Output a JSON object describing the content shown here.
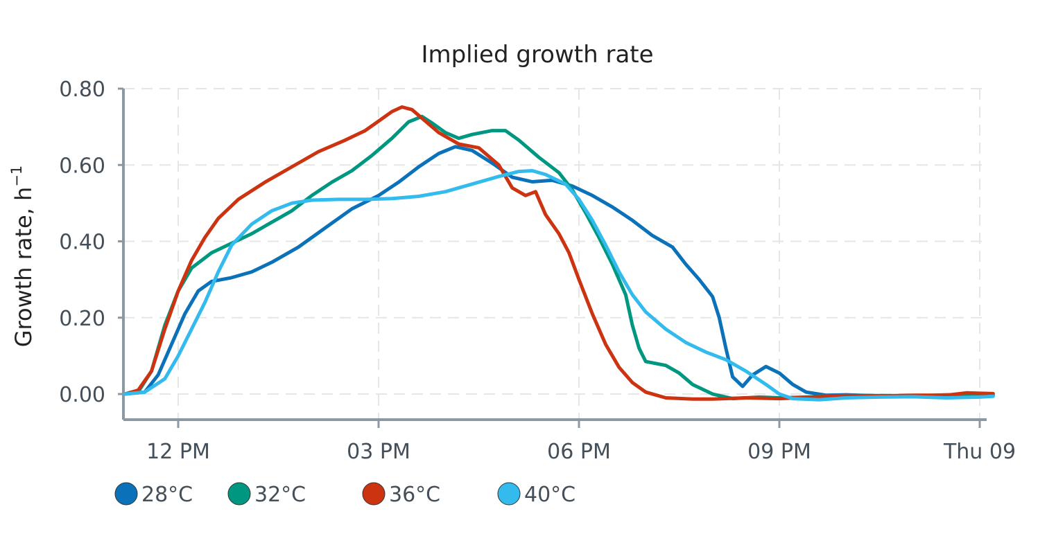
{
  "chart_data": {
    "type": "line",
    "title": "Implied growth rate",
    "ylabel": "Growth rate, h",
    "ylabel_sup": "−1",
    "ylim": [
      -0.07,
      0.8
    ],
    "xlim": [
      11.2,
      24.25
    ],
    "yticks": [
      {
        "value": 0.0,
        "label": "0.00"
      },
      {
        "value": 0.2,
        "label": "0.20"
      },
      {
        "value": 0.4,
        "label": "0.40"
      },
      {
        "value": 0.6,
        "label": "0.60"
      },
      {
        "value": 0.8,
        "label": "0.80"
      }
    ],
    "xticks": [
      {
        "value": 12,
        "label": "12 PM"
      },
      {
        "value": 15,
        "label": "03 PM"
      },
      {
        "value": 18,
        "label": "06 PM"
      },
      {
        "value": 21,
        "label": "09 PM"
      },
      {
        "value": 24,
        "label": "Thu 09"
      }
    ],
    "grid": true,
    "legend_position": "bottom-left",
    "series": [
      {
        "name": "28°C",
        "color": "#0b72b9",
        "points": [
          [
            11.2,
            0.0
          ],
          [
            11.5,
            0.005
          ],
          [
            11.7,
            0.05
          ],
          [
            11.9,
            0.13
          ],
          [
            12.1,
            0.21
          ],
          [
            12.3,
            0.27
          ],
          [
            12.5,
            0.295
          ],
          [
            12.8,
            0.305
          ],
          [
            13.1,
            0.32
          ],
          [
            13.4,
            0.345
          ],
          [
            13.8,
            0.385
          ],
          [
            14.2,
            0.435
          ],
          [
            14.6,
            0.485
          ],
          [
            15.0,
            0.52
          ],
          [
            15.3,
            0.555
          ],
          [
            15.6,
            0.595
          ],
          [
            15.9,
            0.63
          ],
          [
            16.15,
            0.648
          ],
          [
            16.4,
            0.638
          ],
          [
            16.7,
            0.605
          ],
          [
            17.0,
            0.568
          ],
          [
            17.3,
            0.556
          ],
          [
            17.6,
            0.56
          ],
          [
            17.9,
            0.545
          ],
          [
            18.2,
            0.52
          ],
          [
            18.5,
            0.49
          ],
          [
            18.8,
            0.455
          ],
          [
            19.1,
            0.415
          ],
          [
            19.4,
            0.385
          ],
          [
            19.6,
            0.34
          ],
          [
            19.8,
            0.3
          ],
          [
            20.0,
            0.255
          ],
          [
            20.1,
            0.2
          ],
          [
            20.2,
            0.12
          ],
          [
            20.3,
            0.045
          ],
          [
            20.45,
            0.02
          ],
          [
            20.6,
            0.05
          ],
          [
            20.8,
            0.072
          ],
          [
            21.0,
            0.055
          ],
          [
            21.2,
            0.025
          ],
          [
            21.4,
            0.005
          ],
          [
            21.7,
            -0.003
          ],
          [
            22.0,
            -0.002
          ],
          [
            22.5,
            -0.005
          ],
          [
            23.0,
            -0.005
          ],
          [
            23.5,
            -0.006
          ],
          [
            24.0,
            -0.004
          ],
          [
            24.2,
            -0.004
          ]
        ]
      },
      {
        "name": "32°C",
        "color": "#009781",
        "points": [
          [
            11.2,
            0.0
          ],
          [
            11.4,
            0.005
          ],
          [
            11.6,
            0.06
          ],
          [
            11.8,
            0.18
          ],
          [
            12.0,
            0.27
          ],
          [
            12.2,
            0.33
          ],
          [
            12.5,
            0.37
          ],
          [
            12.8,
            0.395
          ],
          [
            13.1,
            0.42
          ],
          [
            13.4,
            0.45
          ],
          [
            13.7,
            0.48
          ],
          [
            14.0,
            0.52
          ],
          [
            14.3,
            0.555
          ],
          [
            14.6,
            0.585
          ],
          [
            14.9,
            0.625
          ],
          [
            15.2,
            0.67
          ],
          [
            15.45,
            0.713
          ],
          [
            15.65,
            0.727
          ],
          [
            15.8,
            0.71
          ],
          [
            16.0,
            0.685
          ],
          [
            16.2,
            0.67
          ],
          [
            16.4,
            0.68
          ],
          [
            16.7,
            0.69
          ],
          [
            16.9,
            0.69
          ],
          [
            17.1,
            0.665
          ],
          [
            17.4,
            0.62
          ],
          [
            17.7,
            0.58
          ],
          [
            17.9,
            0.535
          ],
          [
            18.1,
            0.475
          ],
          [
            18.3,
            0.41
          ],
          [
            18.5,
            0.34
          ],
          [
            18.7,
            0.26
          ],
          [
            18.8,
            0.18
          ],
          [
            18.9,
            0.12
          ],
          [
            19.0,
            0.085
          ],
          [
            19.3,
            0.075
          ],
          [
            19.5,
            0.055
          ],
          [
            19.7,
            0.025
          ],
          [
            20.0,
            0.0
          ],
          [
            20.3,
            -0.012
          ],
          [
            20.7,
            -0.008
          ],
          [
            21.0,
            -0.01
          ],
          [
            21.4,
            -0.008
          ],
          [
            22.0,
            -0.004
          ],
          [
            22.5,
            -0.004
          ],
          [
            23.0,
            -0.005
          ],
          [
            23.5,
            -0.002
          ],
          [
            24.0,
            -0.002
          ],
          [
            24.2,
            -0.002
          ]
        ]
      },
      {
        "name": "36°C",
        "color": "#cc3311",
        "points": [
          [
            11.2,
            0.0
          ],
          [
            11.4,
            0.01
          ],
          [
            11.6,
            0.06
          ],
          [
            11.8,
            0.17
          ],
          [
            12.0,
            0.27
          ],
          [
            12.2,
            0.35
          ],
          [
            12.4,
            0.41
          ],
          [
            12.6,
            0.46
          ],
          [
            12.9,
            0.51
          ],
          [
            13.3,
            0.555
          ],
          [
            13.7,
            0.595
          ],
          [
            14.1,
            0.635
          ],
          [
            14.5,
            0.665
          ],
          [
            14.8,
            0.69
          ],
          [
            15.0,
            0.715
          ],
          [
            15.2,
            0.74
          ],
          [
            15.35,
            0.752
          ],
          [
            15.5,
            0.745
          ],
          [
            15.7,
            0.715
          ],
          [
            15.9,
            0.685
          ],
          [
            16.2,
            0.655
          ],
          [
            16.5,
            0.645
          ],
          [
            16.8,
            0.6
          ],
          [
            17.0,
            0.54
          ],
          [
            17.2,
            0.52
          ],
          [
            17.35,
            0.53
          ],
          [
            17.5,
            0.47
          ],
          [
            17.7,
            0.42
          ],
          [
            17.85,
            0.37
          ],
          [
            18.0,
            0.3
          ],
          [
            18.2,
            0.21
          ],
          [
            18.4,
            0.13
          ],
          [
            18.6,
            0.07
          ],
          [
            18.8,
            0.03
          ],
          [
            19.0,
            0.005
          ],
          [
            19.3,
            -0.01
          ],
          [
            19.7,
            -0.013
          ],
          [
            20.0,
            -0.013
          ],
          [
            20.5,
            -0.01
          ],
          [
            21.0,
            -0.012
          ],
          [
            21.5,
            -0.008
          ],
          [
            22.0,
            -0.004
          ],
          [
            22.5,
            -0.005
          ],
          [
            23.0,
            -0.003
          ],
          [
            23.5,
            -0.003
          ],
          [
            23.8,
            0.003
          ],
          [
            24.0,
            0.002
          ],
          [
            24.2,
            0.001
          ]
        ]
      },
      {
        "name": "40°C",
        "color": "#33bbee",
        "points": [
          [
            11.2,
            0.0
          ],
          [
            11.5,
            0.005
          ],
          [
            11.8,
            0.04
          ],
          [
            12.0,
            0.1
          ],
          [
            12.2,
            0.17
          ],
          [
            12.4,
            0.24
          ],
          [
            12.6,
            0.32
          ],
          [
            12.8,
            0.39
          ],
          [
            13.1,
            0.445
          ],
          [
            13.4,
            0.48
          ],
          [
            13.7,
            0.5
          ],
          [
            14.0,
            0.508
          ],
          [
            14.4,
            0.51
          ],
          [
            14.8,
            0.51
          ],
          [
            15.2,
            0.512
          ],
          [
            15.6,
            0.518
          ],
          [
            16.0,
            0.53
          ],
          [
            16.4,
            0.55
          ],
          [
            16.8,
            0.57
          ],
          [
            17.1,
            0.583
          ],
          [
            17.3,
            0.585
          ],
          [
            17.5,
            0.575
          ],
          [
            17.8,
            0.55
          ],
          [
            18.0,
            0.51
          ],
          [
            18.2,
            0.455
          ],
          [
            18.4,
            0.39
          ],
          [
            18.6,
            0.32
          ],
          [
            18.8,
            0.26
          ],
          [
            19.0,
            0.215
          ],
          [
            19.3,
            0.17
          ],
          [
            19.6,
            0.135
          ],
          [
            19.9,
            0.11
          ],
          [
            20.2,
            0.09
          ],
          [
            20.5,
            0.06
          ],
          [
            20.8,
            0.025
          ],
          [
            21.0,
            0.0
          ],
          [
            21.2,
            -0.012
          ],
          [
            21.6,
            -0.015
          ],
          [
            22.0,
            -0.01
          ],
          [
            22.5,
            -0.008
          ],
          [
            23.0,
            -0.007
          ],
          [
            23.5,
            -0.01
          ],
          [
            24.0,
            -0.008
          ],
          [
            24.2,
            -0.006
          ]
        ]
      }
    ]
  }
}
